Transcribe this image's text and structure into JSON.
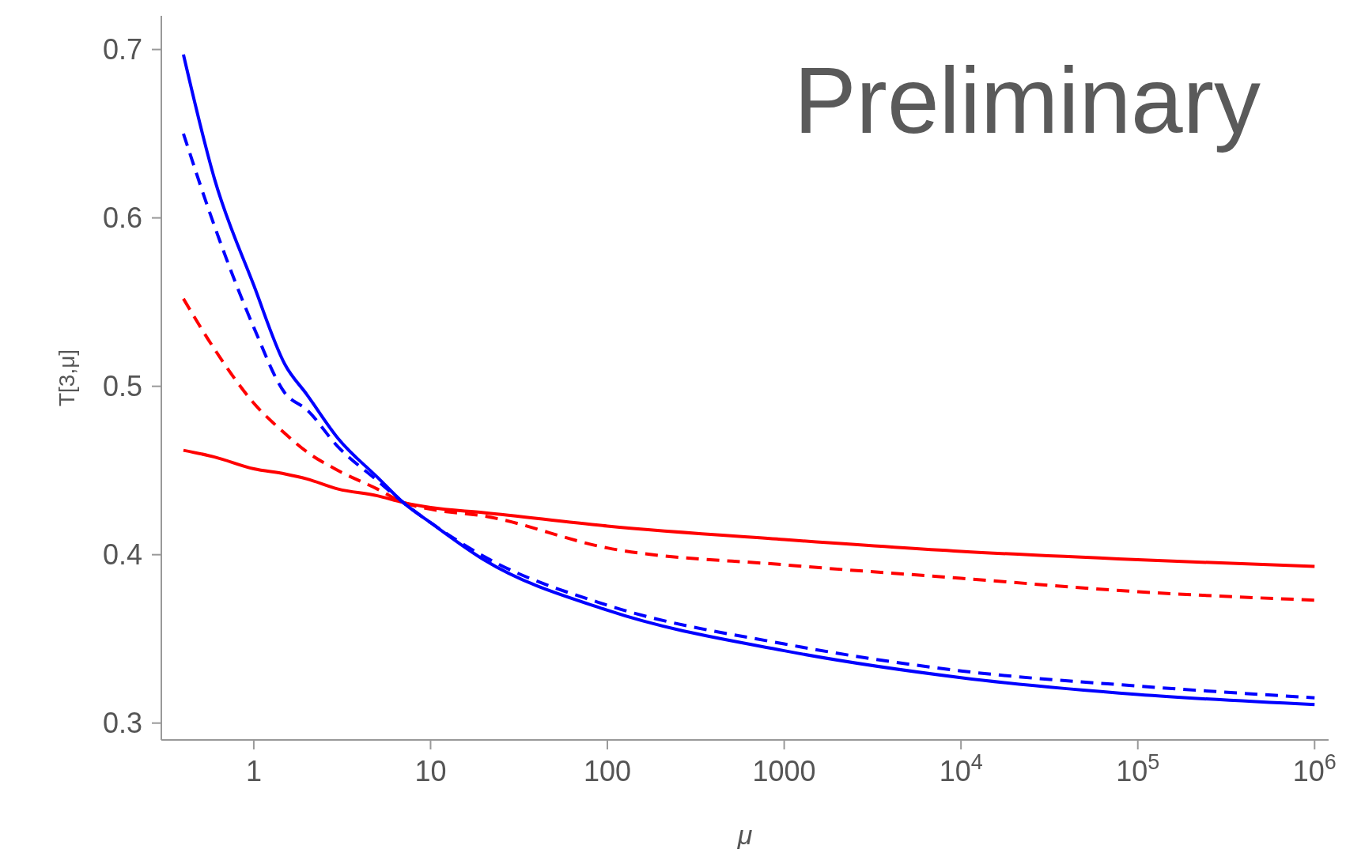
{
  "chart_data": {
    "type": "line",
    "xlabel": "μ",
    "ylabel": "T[3,μ]",
    "log": "x",
    "annotations": [
      "Preliminary"
    ],
    "xlim": [
      0.3,
      1200000
    ],
    "ylim": [
      0.29,
      0.72
    ],
    "xticks": [
      1,
      10,
      100,
      1000,
      {
        "value": 10000,
        "label": "10$^{4}$"
      },
      {
        "value": 100000,
        "label": "10$^{5}$"
      },
      {
        "value": 1000000,
        "label": "10$^{6}$"
      }
    ],
    "yticks": [
      0.3,
      0.4,
      0.5,
      0.6,
      0.7
    ],
    "x": [
      0.4,
      0.6,
      1,
      1.5,
      2,
      3,
      5,
      7,
      10,
      20,
      100,
      1000,
      10000,
      100000,
      1000000
    ],
    "series": [
      {
        "color": "#ff0000",
        "line_style": "solid",
        "values": [
          0.462,
          0.458,
          0.451,
          0.448,
          0.445,
          0.439,
          0.435,
          0.431,
          0.428,
          0.425,
          0.417,
          0.409,
          0.402,
          0.397,
          0.393
        ]
      },
      {
        "color": "#ff0000",
        "line_style": "dashed",
        "values": [
          0.552,
          0.522,
          0.49,
          0.472,
          0.461,
          0.45,
          0.439,
          0.431,
          0.427,
          0.423,
          0.404,
          0.394,
          0.386,
          0.378,
          0.373
        ]
      },
      {
        "color": "#0000ff",
        "line_style": "solid",
        "values": [
          0.697,
          0.623,
          0.56,
          0.513,
          0.495,
          0.469,
          0.446,
          0.431,
          0.419,
          0.397,
          0.367,
          0.343,
          0.327,
          0.317,
          0.311
        ]
      },
      {
        "color": "#0000ff",
        "line_style": "dashed",
        "values": [
          0.65,
          0.595,
          0.535,
          0.496,
          0.486,
          0.464,
          0.444,
          0.431,
          0.419,
          0.399,
          0.37,
          0.347,
          0.331,
          0.322,
          0.315
        ]
      }
    ]
  }
}
